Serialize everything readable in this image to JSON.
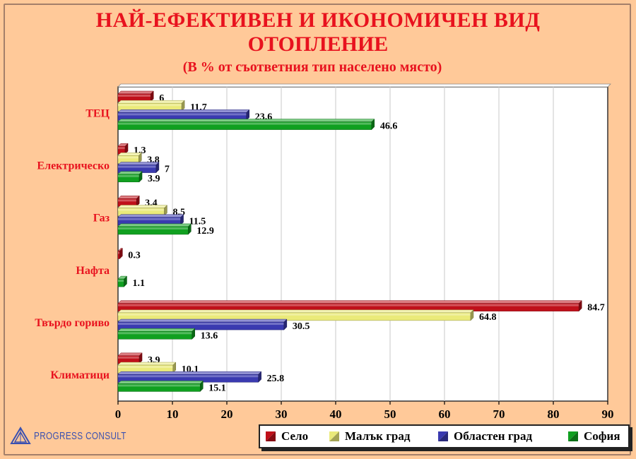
{
  "title_line1": "НАЙ-ЕФЕКТИВЕН И ИКОНОМИЧЕН ВИД",
  "title_line2": "ОТОПЛЕНИЕ",
  "subtitle": "(В % от съответния тип населено място)",
  "logo_text": "PROGRESS CONSULT",
  "colors": {
    "background": "#ffc999",
    "title": "#e8121e",
    "series": [
      "#c0101a",
      "#eaea7a",
      "#3a3ab0",
      "#10a020"
    ]
  },
  "chart_data": {
    "type": "bar",
    "orientation": "horizontal",
    "categories": [
      "ТЕЦ",
      "Електрическо",
      "Газ",
      "Нафта",
      "Твърдо гориво",
      "Климатици"
    ],
    "series": [
      {
        "name": "Село",
        "values": [
          6,
          1.3,
          3.4,
          0.3,
          84.7,
          3.9
        ]
      },
      {
        "name": "Малък град",
        "values": [
          11.7,
          3.8,
          8.5,
          null,
          64.8,
          10.1
        ]
      },
      {
        "name": "Областен град",
        "values": [
          23.6,
          7,
          11.5,
          null,
          30.5,
          25.8
        ]
      },
      {
        "name": "София",
        "values": [
          46.6,
          3.9,
          12.9,
          1.1,
          13.6,
          15.1
        ]
      }
    ],
    "xlim": [
      0,
      90
    ],
    "xticks": [
      0,
      10,
      20,
      30,
      40,
      50,
      60,
      70,
      80,
      90
    ],
    "grid": true,
    "legend": "bottom"
  }
}
